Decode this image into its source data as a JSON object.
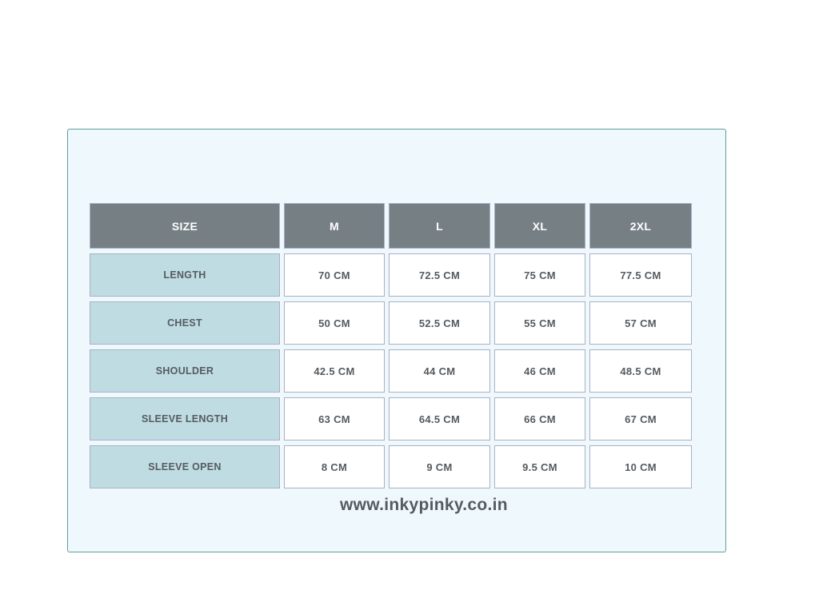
{
  "table": {
    "headers": [
      "SIZE",
      "M",
      "L",
      "XL",
      "2XL"
    ],
    "rows": [
      {
        "label": "LENGTH",
        "values": [
          "70 CM",
          "72.5 CM",
          "75 CM",
          "77.5 CM"
        ]
      },
      {
        "label": "CHEST",
        "values": [
          "50 CM",
          "52.5 CM",
          "55 CM",
          "57 CM"
        ]
      },
      {
        "label": "SHOULDER",
        "values": [
          "42.5 CM",
          "44 CM",
          "46 CM",
          "48.5 CM"
        ]
      },
      {
        "label": "SLEEVE LENGTH",
        "values": [
          "63 CM",
          "64.5 CM",
          "66 CM",
          "67 CM"
        ]
      },
      {
        "label": "SLEEVE OPEN",
        "values": [
          "8 CM",
          "9 CM",
          "9.5 CM",
          "10 CM"
        ]
      }
    ]
  },
  "website": "www.inkypinky.co.in",
  "colors": {
    "header": "#757f84",
    "label": "#bfdce3",
    "panel": "#eff9fd",
    "border": "#5f9e9a"
  }
}
